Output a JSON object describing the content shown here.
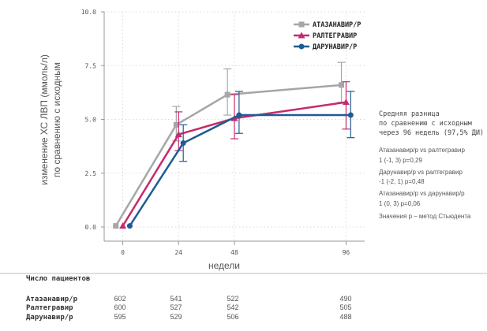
{
  "chart_data": {
    "type": "line",
    "title": "",
    "xlabel": "недели",
    "ylabel": [
      "изменение ХС ЛВП (ммоль/л)",
      "по сравнению с исходным"
    ],
    "x": [
      0,
      24,
      48,
      96
    ],
    "xlim": [
      -8,
      104
    ],
    "ylim": [
      0,
      10
    ],
    "y_ticks": [
      "0.0",
      "2.5",
      "5.0",
      "7.5",
      "10.0"
    ],
    "x_ticks": [
      "0",
      "24",
      "48",
      "96"
    ],
    "grid": true,
    "legend_position": "top-right",
    "series": [
      {
        "name": "АТАЗАНАВИР/Р",
        "color": "#a6a6a6",
        "marker": "square",
        "x": [
          -3,
          23,
          45,
          94
        ],
        "values": [
          0.05,
          4.75,
          6.15,
          6.6
        ],
        "err_low": [
          null,
          4.0,
          5.2,
          5.8
        ],
        "err_high": [
          null,
          5.6,
          7.35,
          7.65
        ]
      },
      {
        "name": "РАЛТЕГРАВИР",
        "color": "#c62a6e",
        "marker": "triangle",
        "x": [
          0,
          24,
          48,
          96
        ],
        "values": [
          0.05,
          4.3,
          5.05,
          5.8
        ],
        "err_low": [
          null,
          3.55,
          4.1,
          4.55
        ],
        "err_high": [
          null,
          5.35,
          6.15,
          6.75
        ]
      },
      {
        "name": "ДАРУНАВИР/Р",
        "color": "#1f5b93",
        "marker": "circle",
        "x": [
          3,
          26,
          50,
          98
        ],
        "values": [
          0.05,
          3.9,
          5.2,
          5.2
        ],
        "err_low": [
          null,
          3.05,
          4.35,
          4.15
        ],
        "err_high": [
          null,
          4.75,
          6.3,
          6.3
        ]
      }
    ]
  },
  "annotation": {
    "heading": [
      "Средняя разница",
      "по сравнению с исходным",
      "через 96 недель (97,5% ДИ)"
    ],
    "lines": [
      "Атазанавир/р vs ралтегравир",
      "1 (-1, 3) p=0,29",
      "Дарунавир/р vs ралтегравир",
      " -1 (-2, 1) p=0,48",
      "Атазанавир/р vs дарунавир/р",
      "1 (0, 3) p=0,06",
      "Значения p – метод Стьюдента"
    ]
  },
  "patients_table": {
    "heading": "Число пациентов",
    "rows": [
      {
        "name": "Атазанавир/р",
        "counts": [
          "602",
          "541",
          "522",
          "490"
        ]
      },
      {
        "name": "Ралтегравир",
        "counts": [
          "600",
          "527",
          "542",
          "505"
        ]
      },
      {
        "name": "Дарунавир/р",
        "counts": [
          "595",
          "529",
          "506",
          "488"
        ]
      }
    ]
  }
}
